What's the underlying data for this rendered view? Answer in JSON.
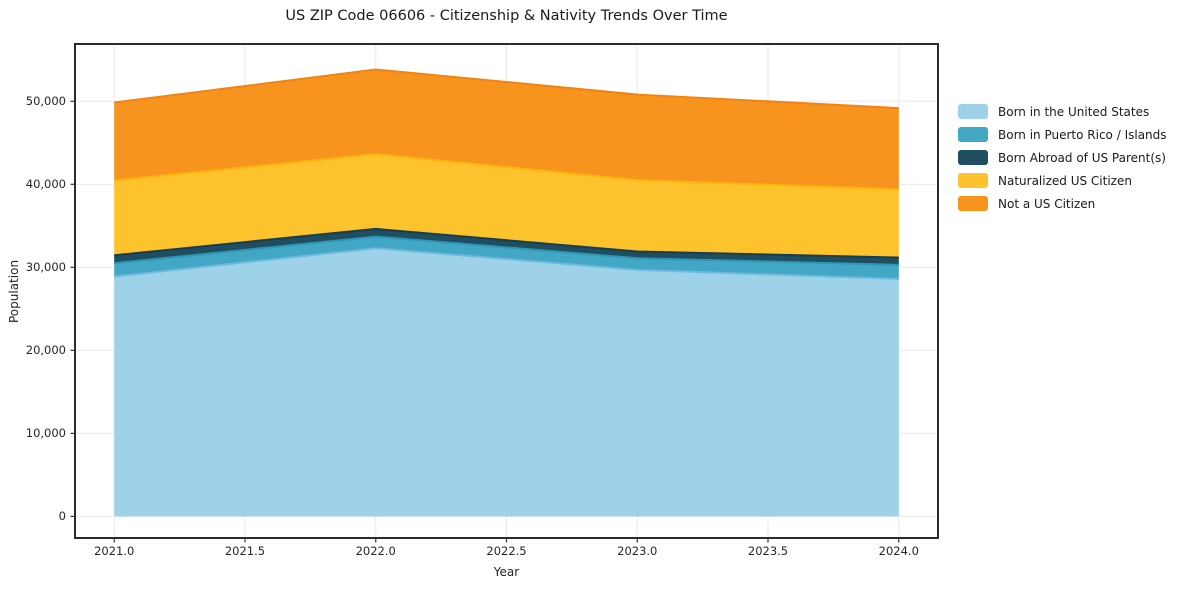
{
  "title": "US ZIP Code 06606 - Citizenship & Nativity Trends Over Time",
  "axes": {
    "xlabel": "Year",
    "ylabel": "Population"
  },
  "chart_data": {
    "type": "area",
    "stacked": true,
    "title": "US ZIP Code 06606 - Citizenship & Nativity Trends Over Time",
    "xlabel": "Year",
    "ylabel": "Population",
    "x": [
      2021,
      2022,
      2023,
      2024
    ],
    "xlim": [
      2020.85,
      2024.15
    ],
    "ylim": [
      -2600,
      56900
    ],
    "grid": true,
    "legend_position": "right",
    "xticks": [
      {
        "v": 2021.0,
        "label": "2021.0"
      },
      {
        "v": 2021.5,
        "label": "2021.5"
      },
      {
        "v": 2022.0,
        "label": "2022.0"
      },
      {
        "v": 2022.5,
        "label": "2022.5"
      },
      {
        "v": 2023.0,
        "label": "2023.0"
      },
      {
        "v": 2023.5,
        "label": "2023.5"
      },
      {
        "v": 2024.0,
        "label": "2024.0"
      }
    ],
    "yticks": [
      {
        "v": 0,
        "label": "0"
      },
      {
        "v": 10000,
        "label": "10,000"
      },
      {
        "v": 20000,
        "label": "20,000"
      },
      {
        "v": 30000,
        "label": "30,000"
      },
      {
        "v": 40000,
        "label": "40,000"
      },
      {
        "v": 50000,
        "label": "50,000"
      }
    ],
    "series": [
      {
        "name": "Born in the United States",
        "values": [
          28900,
          32300,
          29700,
          28600
        ],
        "fill": "#9ED2E9",
        "edge": "#6FB9DC"
      },
      {
        "name": "Born in Puerto Rico / Islands",
        "values": [
          1600,
          1400,
          1400,
          1700
        ],
        "fill": "#41A7C4",
        "edge": "#2E96B4"
      },
      {
        "name": "Born Abroad of US Parent(s)",
        "values": [
          950,
          930,
          810,
          880
        ],
        "fill": "#1F4E61",
        "edge": "#173E4E"
      },
      {
        "name": "Naturalized US Citizen",
        "values": [
          9000,
          9000,
          8600,
          8200
        ],
        "fill": "#FDC32D",
        "edge": "#FCB511"
      },
      {
        "name": "Not a US Citizen",
        "values": [
          9400,
          10200,
          10300,
          9800
        ],
        "fill": "#F7941E",
        "edge": "#EF8414"
      }
    ],
    "colors": {
      "grid": "#e9e9e9",
      "border": "#2b2b2b",
      "tick": "#333333",
      "text": "#262626"
    }
  }
}
